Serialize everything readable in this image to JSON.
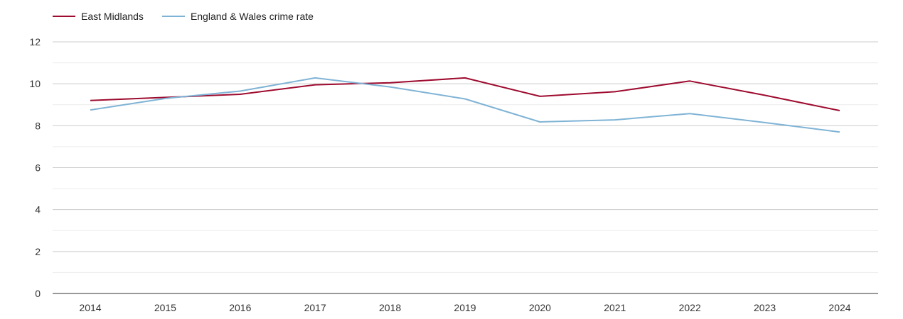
{
  "chart_data": {
    "type": "line",
    "categories": [
      "2014",
      "2015",
      "2016",
      "2017",
      "2018",
      "2019",
      "2020",
      "2021",
      "2022",
      "2023",
      "2024"
    ],
    "ylim": [
      0,
      12
    ],
    "yticks": [
      0,
      2,
      4,
      6,
      8,
      10,
      12
    ],
    "grid": true,
    "legend_position": "top-left",
    "series": [
      {
        "name": "East Midlands",
        "color": "#9e0b2f",
        "values": [
          9.2,
          9.35,
          9.5,
          9.95,
          10.05,
          10.28,
          9.4,
          9.62,
          10.13,
          9.45,
          8.72
        ]
      },
      {
        "name": "England & Wales crime rate",
        "color": "#7fb3d5",
        "values": [
          8.75,
          9.3,
          9.65,
          10.28,
          9.85,
          9.28,
          8.18,
          8.28,
          8.58,
          8.15,
          7.7
        ]
      }
    ]
  }
}
